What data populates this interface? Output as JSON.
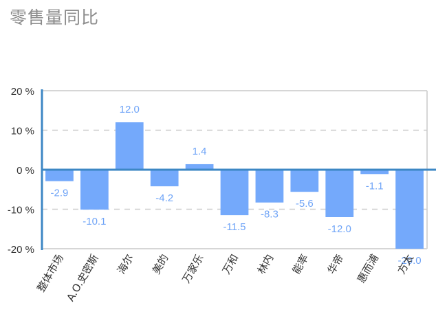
{
  "title": "零售量同比",
  "chart_data": {
    "type": "bar",
    "title": "零售量同比",
    "xlabel": "",
    "ylabel": "",
    "categories": [
      "整体市场",
      "A.O.史密斯",
      "海尔",
      "美的",
      "万家乐",
      "万和",
      "林内",
      "能率",
      "华帝",
      "惠而浦",
      "方太"
    ],
    "values": [
      -2.9,
      -10.1,
      12.0,
      -4.2,
      1.4,
      -11.5,
      -8.3,
      -5.6,
      -12.0,
      -1.1,
      -20.0
    ],
    "value_labels": [
      "-2.9",
      "-10.1",
      "12.0",
      "-4.2",
      "1.4",
      "-11.5",
      "-8.3",
      "-5.6",
      "-12.0",
      "-1.1",
      "-20.0"
    ],
    "ylim": [
      -20,
      20
    ],
    "yticks": [
      20,
      10,
      0,
      -10,
      -20
    ],
    "ytick_labels": [
      "20 %",
      "10 %",
      "0 %",
      "-10 %",
      "-20 %"
    ],
    "grid": "dashed horizontal",
    "legend": "none",
    "colors": {
      "bar": "#74a9fb",
      "axis": "#3d87c4",
      "label": "#6fa4f7",
      "grid": "#cccccc"
    }
  }
}
